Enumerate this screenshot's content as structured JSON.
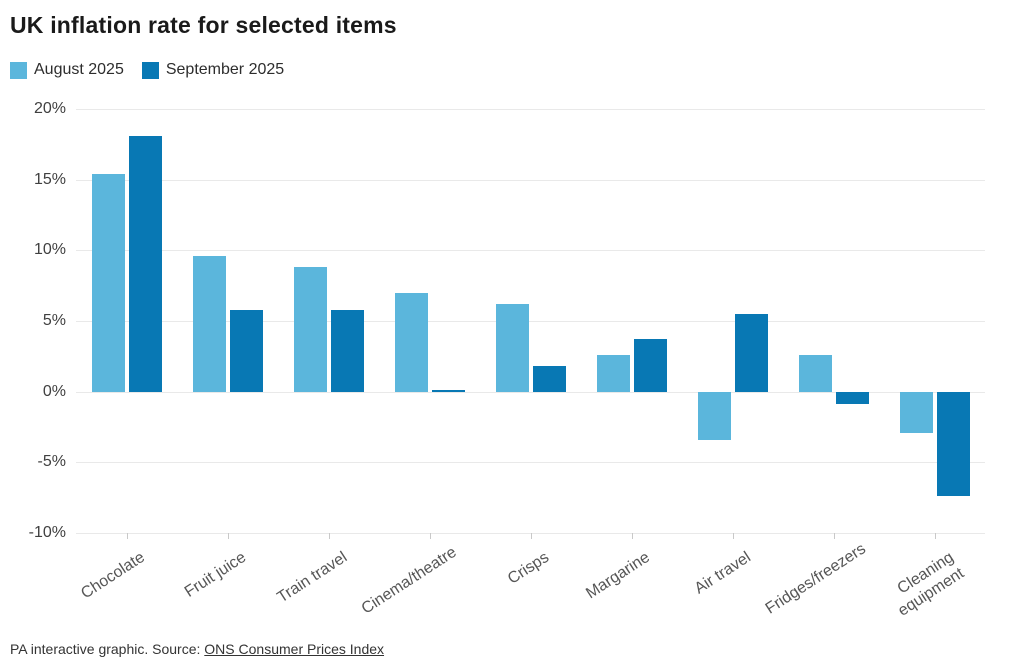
{
  "title": "UK inflation rate for selected items",
  "footer": {
    "prefix": "PA interactive graphic. Source: ",
    "link_label": "ONS Consumer Prices Index"
  },
  "chart_data": {
    "type": "bar",
    "title": "UK inflation rate for selected items",
    "categories": [
      "Chocolate",
      "Fruit juice",
      "Train travel",
      "Cinema/theatre",
      "Crisps",
      "Margarine",
      "Air travel",
      "Fridges/freezers",
      "Cleaning equipment"
    ],
    "series": [
      {
        "name": "August 2025",
        "color": "#5bb6dc",
        "values": [
          15.4,
          9.6,
          8.8,
          7.0,
          6.2,
          2.6,
          -3.4,
          2.6,
          -2.9
        ]
      },
      {
        "name": "September 2025",
        "color": "#0878b4",
        "values": [
          18.1,
          5.8,
          5.8,
          0.1,
          1.8,
          3.7,
          5.5,
          -0.9,
          -7.4
        ]
      }
    ],
    "xlabel": "",
    "ylabel": "",
    "y_ticks": [
      20,
      15,
      10,
      5,
      0,
      -5,
      -10
    ],
    "y_tick_suffix": "%",
    "ylim": [
      -10,
      20
    ],
    "grid": true,
    "legend_position": "top-left",
    "grid_color": "#e9e9e9"
  }
}
